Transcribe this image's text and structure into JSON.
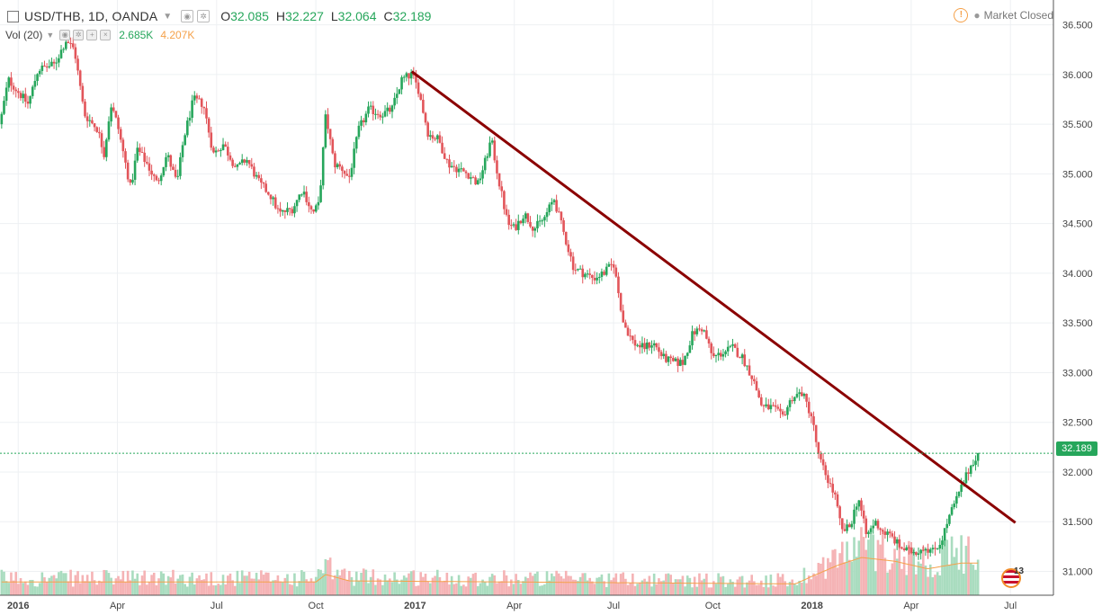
{
  "header": {
    "symbol": "USD/THB, 1D, OANDA",
    "open_label": "O",
    "open": "32.085",
    "high_label": "H",
    "high": "32.227",
    "low_label": "L",
    "low": "32.064",
    "close_label": "C",
    "close": "32.189"
  },
  "volume_legend": {
    "label": "Vol (20)",
    "value": "2.685K",
    "ma_value": "4.207K"
  },
  "status": {
    "text": "Market Closed",
    "icon": "warning-icon"
  },
  "price_tag": "32.189",
  "badge_count": "13",
  "colors": {
    "up": "#26a65b",
    "down": "#e2555a",
    "trendline": "#8b0000",
    "vol_ma": "#f5a14a"
  },
  "chart_data": {
    "type": "candlestick",
    "title": "USD/THB, 1D, OANDA",
    "y_ticks": [
      "36.500",
      "36.000",
      "35.500",
      "35.000",
      "34.500",
      "34.000",
      "33.500",
      "33.000",
      "32.500",
      "32.000",
      "31.500",
      "31.000"
    ],
    "y_tick_values": [
      36.5,
      36.0,
      35.5,
      35.0,
      34.5,
      34.0,
      33.5,
      33.0,
      32.5,
      32.0,
      31.5,
      31.0
    ],
    "ylim": [
      30.76,
      36.75
    ],
    "x_ticks": [
      "2016",
      "Apr",
      "Jul",
      "Oct",
      "2017",
      "Apr",
      "Jul",
      "Oct",
      "2018",
      "Apr",
      "Jul"
    ],
    "x_tick_months": [
      0,
      3,
      6,
      9,
      12,
      15,
      18,
      21,
      24,
      27,
      30
    ],
    "xlim_months": [
      -0.55,
      31.3
    ],
    "close_path": [
      {
        "t": -0.55,
        "p": 35.5
      },
      {
        "t": -0.3,
        "p": 35.95
      },
      {
        "t": 0.3,
        "p": 35.7
      },
      {
        "t": 0.6,
        "p": 36.05
      },
      {
        "t": 1.1,
        "p": 36.1
      },
      {
        "t": 1.45,
        "p": 36.35
      },
      {
        "t": 1.7,
        "p": 36.25
      },
      {
        "t": 2.0,
        "p": 35.6
      },
      {
        "t": 2.4,
        "p": 35.45
      },
      {
        "t": 2.6,
        "p": 35.2
      },
      {
        "t": 2.8,
        "p": 35.7
      },
      {
        "t": 3.0,
        "p": 35.5
      },
      {
        "t": 3.4,
        "p": 34.85
      },
      {
        "t": 3.6,
        "p": 35.25
      },
      {
        "t": 3.9,
        "p": 35.1
      },
      {
        "t": 4.2,
        "p": 34.9
      },
      {
        "t": 4.5,
        "p": 35.2
      },
      {
        "t": 4.8,
        "p": 34.9
      },
      {
        "t": 5.0,
        "p": 35.35
      },
      {
        "t": 5.3,
        "p": 35.75
      },
      {
        "t": 5.6,
        "p": 35.7
      },
      {
        "t": 5.9,
        "p": 35.2
      },
      {
        "t": 6.2,
        "p": 35.3
      },
      {
        "t": 6.6,
        "p": 35.05
      },
      {
        "t": 6.9,
        "p": 35.15
      },
      {
        "t": 7.3,
        "p": 34.9
      },
      {
        "t": 7.6,
        "p": 34.8
      },
      {
        "t": 7.9,
        "p": 34.6
      },
      {
        "t": 8.3,
        "p": 34.65
      },
      {
        "t": 8.6,
        "p": 34.85
      },
      {
        "t": 8.9,
        "p": 34.6
      },
      {
        "t": 9.1,
        "p": 34.7
      },
      {
        "t": 9.3,
        "p": 35.6
      },
      {
        "t": 9.55,
        "p": 35.1
      },
      {
        "t": 9.8,
        "p": 35.05
      },
      {
        "t": 10.0,
        "p": 34.95
      },
      {
        "t": 10.3,
        "p": 35.45
      },
      {
        "t": 10.6,
        "p": 35.65
      },
      {
        "t": 11.0,
        "p": 35.6
      },
      {
        "t": 11.3,
        "p": 35.65
      },
      {
        "t": 11.6,
        "p": 35.95
      },
      {
        "t": 11.9,
        "p": 36.0
      },
      {
        "t": 12.1,
        "p": 35.85
      },
      {
        "t": 12.4,
        "p": 35.4
      },
      {
        "t": 12.7,
        "p": 35.35
      },
      {
        "t": 13.0,
        "p": 35.1
      },
      {
        "t": 13.3,
        "p": 35.05
      },
      {
        "t": 13.6,
        "p": 35.0
      },
      {
        "t": 13.9,
        "p": 34.9
      },
      {
        "t": 14.1,
        "p": 35.1
      },
      {
        "t": 14.3,
        "p": 35.35
      },
      {
        "t": 14.55,
        "p": 34.9
      },
      {
        "t": 14.8,
        "p": 34.5
      },
      {
        "t": 15.0,
        "p": 34.45
      },
      {
        "t": 15.3,
        "p": 34.6
      },
      {
        "t": 15.6,
        "p": 34.45
      },
      {
        "t": 15.9,
        "p": 34.55
      },
      {
        "t": 16.2,
        "p": 34.75
      },
      {
        "t": 16.5,
        "p": 34.4
      },
      {
        "t": 16.8,
        "p": 34.05
      },
      {
        "t": 17.1,
        "p": 34.0
      },
      {
        "t": 17.4,
        "p": 33.95
      },
      {
        "t": 17.7,
        "p": 34.0
      },
      {
        "t": 18.0,
        "p": 34.1
      },
      {
        "t": 18.3,
        "p": 33.5
      },
      {
        "t": 18.6,
        "p": 33.3
      },
      {
        "t": 18.9,
        "p": 33.25
      },
      {
        "t": 19.2,
        "p": 33.3
      },
      {
        "t": 19.5,
        "p": 33.15
      },
      {
        "t": 19.8,
        "p": 33.1
      },
      {
        "t": 20.1,
        "p": 33.1
      },
      {
        "t": 20.4,
        "p": 33.4
      },
      {
        "t": 20.7,
        "p": 33.45
      },
      {
        "t": 21.0,
        "p": 33.15
      },
      {
        "t": 21.3,
        "p": 33.2
      },
      {
        "t": 21.6,
        "p": 33.25
      },
      {
        "t": 21.9,
        "p": 33.15
      },
      {
        "t": 22.2,
        "p": 32.95
      },
      {
        "t": 22.5,
        "p": 32.65
      },
      {
        "t": 22.8,
        "p": 32.65
      },
      {
        "t": 23.1,
        "p": 32.55
      },
      {
        "t": 23.4,
        "p": 32.75
      },
      {
        "t": 23.7,
        "p": 32.8
      },
      {
        "t": 24.0,
        "p": 32.55
      },
      {
        "t": 24.2,
        "p": 32.15
      },
      {
        "t": 24.45,
        "p": 31.95
      },
      {
        "t": 24.7,
        "p": 31.75
      },
      {
        "t": 24.9,
        "p": 31.4
      },
      {
        "t": 25.15,
        "p": 31.45
      },
      {
        "t": 25.4,
        "p": 31.75
      },
      {
        "t": 25.65,
        "p": 31.35
      },
      {
        "t": 25.9,
        "p": 31.5
      },
      {
        "t": 26.15,
        "p": 31.4
      },
      {
        "t": 26.4,
        "p": 31.35
      },
      {
        "t": 26.65,
        "p": 31.25
      },
      {
        "t": 26.9,
        "p": 31.2
      },
      {
        "t": 27.15,
        "p": 31.2
      },
      {
        "t": 27.4,
        "p": 31.25
      },
      {
        "t": 27.65,
        "p": 31.2
      },
      {
        "t": 27.9,
        "p": 31.3
      },
      {
        "t": 28.15,
        "p": 31.55
      },
      {
        "t": 28.4,
        "p": 31.75
      },
      {
        "t": 28.65,
        "p": 31.95
      },
      {
        "t": 28.85,
        "p": 32.1
      },
      {
        "t": 29.05,
        "p": 32.19
      }
    ],
    "volume_profile": [
      {
        "t": -0.55,
        "v": 0.35
      },
      {
        "t": 9.0,
        "v": 0.35
      },
      {
        "t": 9.3,
        "v": 0.55
      },
      {
        "t": 10.0,
        "v": 0.38
      },
      {
        "t": 23.5,
        "v": 0.3
      },
      {
        "t": 24.0,
        "v": 0.5
      },
      {
        "t": 24.8,
        "v": 0.8
      },
      {
        "t": 25.5,
        "v": 1.0
      },
      {
        "t": 26.5,
        "v": 0.9
      },
      {
        "t": 27.5,
        "v": 0.7
      },
      {
        "t": 28.5,
        "v": 0.85
      },
      {
        "t": 29.05,
        "v": 0.85
      }
    ],
    "trendline": [
      {
        "t": 11.9,
        "p": 36.03
      },
      {
        "t": 30.15,
        "p": 31.49
      }
    ],
    "last_price": 32.189
  }
}
